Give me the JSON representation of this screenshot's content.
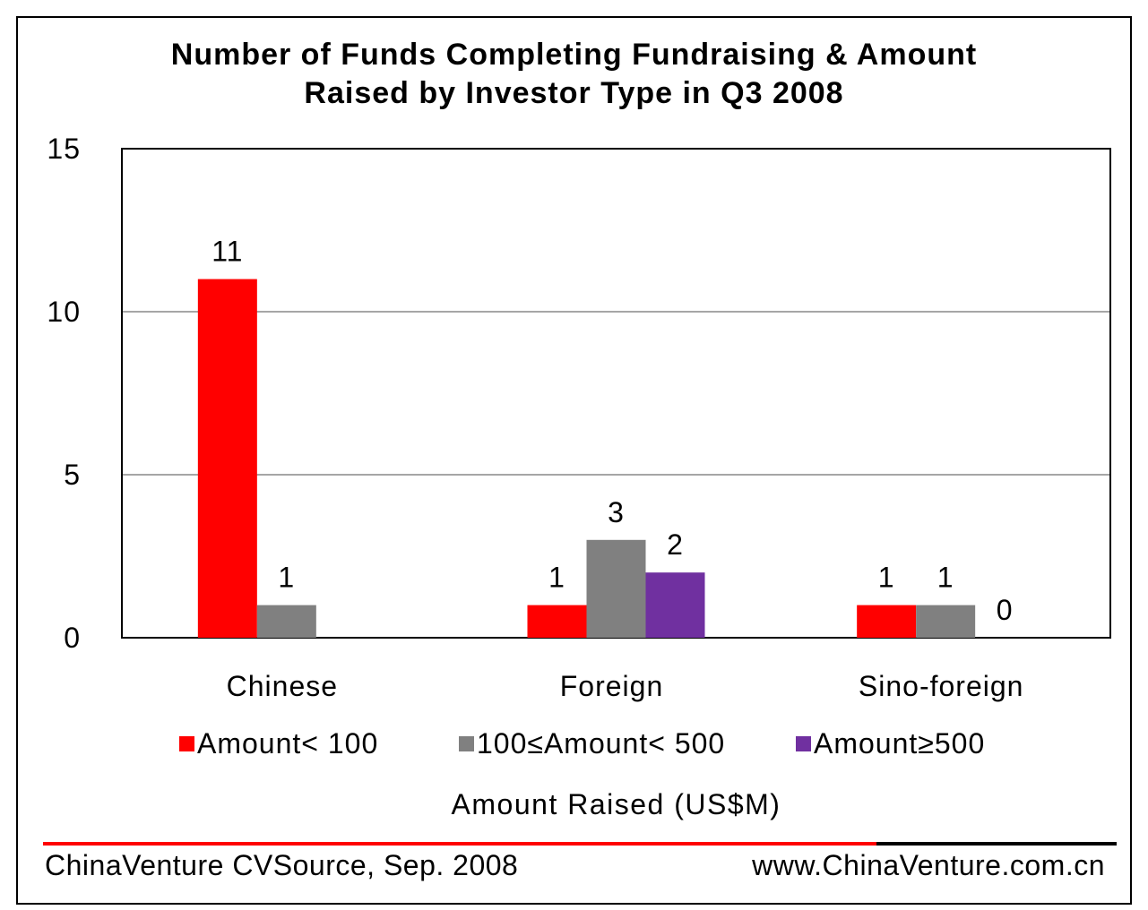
{
  "chart_data": {
    "type": "bar",
    "title": "Number of Funds Completing Fundraising & Amount Raised by Investor Type in Q3 2008",
    "title_lines": [
      "Number of Funds Completing Fundraising & Amount",
      "Raised by Investor Type in Q3 2008"
    ],
    "xlabel": "Amount Raised (US$M)",
    "ylabel": "",
    "categories": [
      "Chinese",
      "Foreign",
      "Sino-foreign"
    ],
    "series": [
      {
        "name": "Amount< 100",
        "color": "#ff0000",
        "values": [
          11,
          1,
          1
        ]
      },
      {
        "name": "100≤Amount< 500",
        "color": "#808080",
        "values": [
          1,
          3,
          1
        ]
      },
      {
        "name": "Amount≥500",
        "color": "#7030a0",
        "values": [
          null,
          2,
          0
        ]
      }
    ],
    "ylim": [
      0,
      15
    ],
    "yticks": [
      0,
      5,
      10,
      15
    ],
    "grid": true,
    "legend_position": "bottom"
  },
  "footer": {
    "source": "ChinaVenture CVSource, Sep. 2008",
    "website": "www.ChinaVenture.com.cn"
  }
}
